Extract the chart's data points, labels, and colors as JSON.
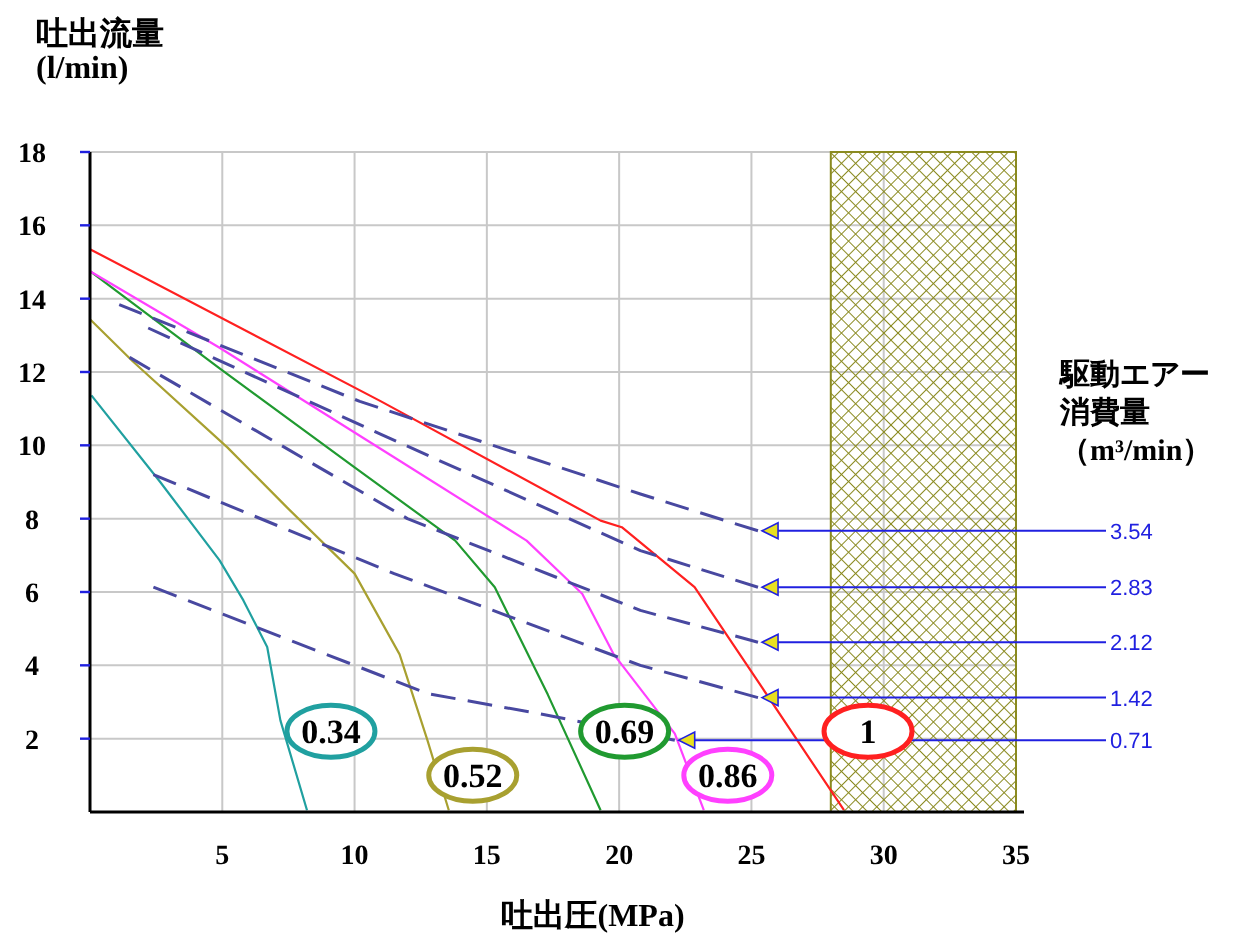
{
  "chart_data": {
    "type": "line",
    "xlabel": "吐出圧(MPa)",
    "ylabel": "吐出流量\n(l/min)",
    "annotations": [
      "駆動エアー",
      "消費量",
      "（m³/min）"
    ],
    "xlim": [
      0,
      35
    ],
    "ylim": [
      0,
      18
    ],
    "xticks": [
      5,
      10,
      15,
      20,
      25,
      30,
      35
    ],
    "yticks": [
      2,
      4,
      6,
      8,
      10,
      12,
      14,
      16,
      18
    ],
    "grid": true,
    "bands": [
      {
        "axis": "x",
        "from": 28,
        "to": 35,
        "color": "#8a8a20"
      }
    ],
    "series": [
      {
        "name": "0.34",
        "color": "#20a0a0",
        "line_style": "solid",
        "x": [
          0.05,
          2.65,
          4.9,
          5.8,
          6.7,
          7.2,
          8.2
        ],
        "values": [
          11.36,
          9.0,
          6.86,
          5.77,
          4.5,
          2.5,
          0.05
        ]
      },
      {
        "name": "0.52",
        "color": "#a8a030",
        "line_style": "solid",
        "x": [
          0,
          1.6,
          5.2,
          7.45,
          10,
          11.7,
          12.75,
          13.56
        ],
        "values": [
          13.44,
          12.3,
          9.94,
          8.3,
          6.5,
          4.3,
          1.96,
          0.05
        ]
      },
      {
        "name": "0.69",
        "color": "#209a30",
        "line_style": "solid",
        "x": [
          0,
          4.9,
          10,
          13.8,
          15.3,
          17.3,
          19.3
        ],
        "values": [
          14.75,
          12.1,
          9.4,
          7.4,
          6.13,
          3.2,
          0.05
        ]
      },
      {
        "name": "0.86",
        "color": "#ff40ff",
        "line_style": "solid",
        "x": [
          0,
          4.9,
          11.7,
          16.5,
          18.6,
          19.8,
          22.1,
          23.2
        ],
        "values": [
          14.75,
          12.66,
          9.58,
          7.4,
          5.95,
          4.3,
          2.14,
          0.05
        ]
      },
      {
        "name": "1",
        "color": "#ff2020",
        "line_style": "solid",
        "x": [
          0,
          11,
          19.3,
          20.1,
          22.85,
          25.4,
          28.5
        ],
        "values": [
          15.35,
          11.2,
          7.95,
          7.77,
          6.13,
          3.4,
          0.05
        ]
      },
      {
        "name": "3.54",
        "color": "#4848a0",
        "line_style": "dashed",
        "x": [
          1.1,
          10.2,
          20.8,
          25.25
        ],
        "values": [
          13.84,
          11.2,
          8.67,
          7.67
        ]
      },
      {
        "name": "2.83",
        "color": "#4848a0",
        "line_style": "dashed",
        "x": [
          2.2,
          11,
          20.8,
          25.25
        ],
        "values": [
          13.2,
          10.3,
          7.13,
          6.13
        ]
      },
      {
        "name": "2.12",
        "color": "#4848a0",
        "line_style": "dashed",
        "x": [
          1.5,
          12,
          20.8,
          25.25
        ],
        "values": [
          12.4,
          8.0,
          5.5,
          4.63
        ]
      },
      {
        "name": "1.42",
        "color": "#4848a0",
        "line_style": "dashed",
        "x": [
          2.4,
          11.5,
          20.8,
          25.25
        ],
        "values": [
          9.2,
          6.5,
          4.0,
          3.12
        ]
      },
      {
        "name": "0.71",
        "color": "#4848a0",
        "line_style": "dashed",
        "x": [
          2.4,
          12.75,
          17,
          22.1
        ],
        "values": [
          6.13,
          3.23,
          2.68,
          1.96
        ]
      }
    ]
  }
}
